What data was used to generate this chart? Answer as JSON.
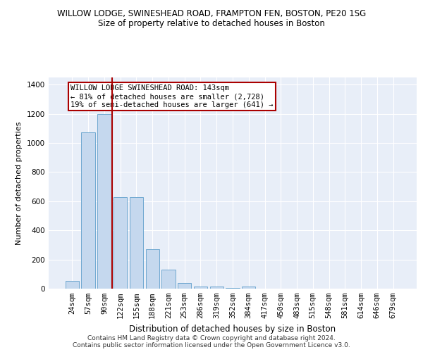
{
  "title": "WILLOW LODGE, SWINESHEAD ROAD, FRAMPTON FEN, BOSTON, PE20 1SG",
  "subtitle": "Size of property relative to detached houses in Boston",
  "xlabel": "Distribution of detached houses by size in Boston",
  "ylabel": "Number of detached properties",
  "categories": [
    "24sqm",
    "57sqm",
    "90sqm",
    "122sqm",
    "155sqm",
    "188sqm",
    "221sqm",
    "253sqm",
    "286sqm",
    "319sqm",
    "352sqm",
    "384sqm",
    "417sqm",
    "450sqm",
    "483sqm",
    "515sqm",
    "548sqm",
    "581sqm",
    "614sqm",
    "646sqm",
    "679sqm"
  ],
  "values": [
    55,
    1075,
    1200,
    630,
    630,
    270,
    130,
    40,
    15,
    15,
    3,
    15,
    0,
    0,
    0,
    0,
    0,
    0,
    0,
    0,
    0
  ],
  "bar_color": "#c5d8ee",
  "bar_edgecolor": "#6fa8d0",
  "vline_x": 2.5,
  "vline_color": "#aa0000",
  "annotation_text": "WILLOW LODGE SWINESHEAD ROAD: 143sqm\n← 81% of detached houses are smaller (2,728)\n19% of semi-detached houses are larger (641) →",
  "annotation_box_color": "#ffffff",
  "annotation_box_edgecolor": "#aa0000",
  "ylim": [
    0,
    1450
  ],
  "yticks": [
    0,
    200,
    400,
    600,
    800,
    1000,
    1200,
    1400
  ],
  "background_color": "#e8eef8",
  "grid_color": "#ffffff",
  "footer_line1": "Contains HM Land Registry data © Crown copyright and database right 2024.",
  "footer_line2": "Contains public sector information licensed under the Open Government Licence v3.0.",
  "title_fontsize": 8.5,
  "subtitle_fontsize": 8.5,
  "tick_fontsize": 7.5
}
